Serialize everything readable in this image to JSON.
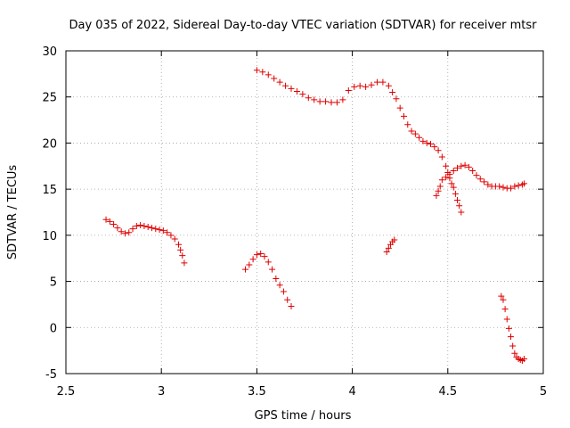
{
  "chart_data": {
    "type": "scatter",
    "title": "Day 035 of 2022, Sidereal Day-to-day VTEC variation (SDTVAR) for receiver mtsr",
    "xlabel": "GPS time / hours",
    "ylabel": "SDTVAR / TECUs",
    "xlim": [
      2.5,
      5
    ],
    "ylim": [
      -5,
      30
    ],
    "xticks": [
      2.5,
      3,
      3.5,
      4,
      4.5,
      5
    ],
    "xtick_labels": [
      "2.5",
      "3",
      "3.5",
      "4",
      "4.5",
      "5"
    ],
    "yticks": [
      -5,
      0,
      5,
      10,
      15,
      20,
      25,
      30
    ],
    "ytick_labels": [
      "-5",
      "0",
      "5",
      "10",
      "15",
      "20",
      "25",
      "30"
    ],
    "grid": true,
    "marker": "+",
    "color": "#e00000",
    "series": [
      {
        "name": "SDTVAR",
        "segments": [
          {
            "x": [
              2.71,
              2.73,
              2.75,
              2.77,
              2.79,
              2.81,
              2.83,
              2.85,
              2.87,
              2.89,
              2.91,
              2.93,
              2.95,
              2.97,
              2.99,
              3.01,
              3.03,
              3.05,
              3.07,
              3.09,
              3.1,
              3.11,
              3.12
            ],
            "y": [
              11.7,
              11.5,
              11.2,
              10.8,
              10.4,
              10.2,
              10.3,
              10.7,
              11.0,
              11.1,
              11.0,
              10.9,
              10.8,
              10.7,
              10.6,
              10.5,
              10.3,
              10.0,
              9.6,
              9.0,
              8.4,
              7.8,
              7.0
            ]
          },
          {
            "x": [
              3.44,
              3.46,
              3.48,
              3.5,
              3.52,
              3.54,
              3.56,
              3.58,
              3.6,
              3.62,
              3.64,
              3.66,
              3.68
            ],
            "y": [
              6.3,
              6.8,
              7.4,
              7.9,
              8.0,
              7.7,
              7.1,
              6.3,
              5.3,
              4.6,
              3.9,
              3.0,
              2.3
            ]
          },
          {
            "x": [
              3.5,
              3.53,
              3.56,
              3.59,
              3.62,
              3.65,
              3.68,
              3.71,
              3.74,
              3.77,
              3.8,
              3.83,
              3.86,
              3.89,
              3.92,
              3.95,
              3.98,
              4.01,
              4.04,
              4.07,
              4.1,
              4.13,
              4.16,
              4.19,
              4.21,
              4.23,
              4.25,
              4.27,
              4.29,
              4.31,
              4.33,
              4.35,
              4.37,
              4.39,
              4.41,
              4.43,
              4.45,
              4.47,
              4.49,
              4.5,
              4.51,
              4.52,
              4.53,
              4.54,
              4.55,
              4.56,
              4.57
            ],
            "y": [
              27.9,
              27.7,
              27.4,
              27.0,
              26.6,
              26.2,
              25.9,
              25.6,
              25.3,
              24.9,
              24.7,
              24.5,
              24.5,
              24.4,
              24.4,
              24.7,
              25.7,
              26.1,
              26.2,
              26.1,
              26.3,
              26.6,
              26.6,
              26.2,
              25.5,
              24.8,
              23.8,
              22.9,
              22.0,
              21.3,
              21.0,
              20.6,
              20.2,
              20.0,
              19.9,
              19.6,
              19.2,
              18.5,
              17.5,
              16.8,
              16.2,
              15.6,
              15.2,
              14.5,
              13.8,
              13.2,
              12.5
            ]
          },
          {
            "x": [
              4.18,
              4.19,
              4.2,
              4.21,
              4.22
            ],
            "y": [
              8.2,
              8.6,
              9.0,
              9.3,
              9.5
            ]
          },
          {
            "x": [
              4.44,
              4.45,
              4.46,
              4.47,
              4.49,
              4.51,
              4.53,
              4.55,
              4.57,
              4.59,
              4.61,
              4.63,
              4.65,
              4.67,
              4.69,
              4.71,
              4.73,
              4.75,
              4.77,
              4.79,
              4.81,
              4.83,
              4.85,
              4.87,
              4.89,
              4.9
            ],
            "y": [
              14.3,
              14.8,
              15.3,
              16.0,
              16.3,
              16.6,
              17.0,
              17.3,
              17.5,
              17.6,
              17.4,
              17.0,
              16.5,
              16.1,
              15.8,
              15.5,
              15.3,
              15.3,
              15.3,
              15.2,
              15.1,
              15.1,
              15.3,
              15.4,
              15.5,
              15.6
            ]
          },
          {
            "x": [
              4.78,
              4.79,
              4.8,
              4.81,
              4.82,
              4.83,
              4.84,
              4.85,
              4.86,
              4.87,
              4.88,
              4.89,
              4.9
            ],
            "y": [
              3.4,
              3.0,
              2.0,
              0.9,
              -0.1,
              -1.0,
              -2.0,
              -2.8,
              -3.2,
              -3.4,
              -3.5,
              -3.6,
              -3.4
            ]
          }
        ]
      }
    ]
  }
}
